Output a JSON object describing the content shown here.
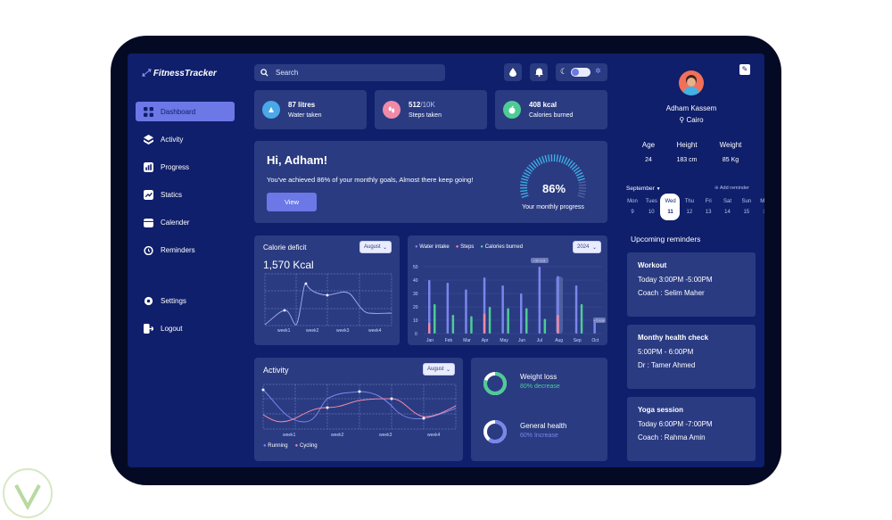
{
  "app": {
    "name": "FitnessTracker"
  },
  "sidebar": {
    "items": [
      {
        "label": "Dashboard"
      },
      {
        "label": "Activity"
      },
      {
        "label": "Progress"
      },
      {
        "label": "Statics"
      },
      {
        "label": "Calender"
      },
      {
        "label": "Reminders"
      },
      {
        "label": "Settings"
      },
      {
        "label": "Logout"
      }
    ]
  },
  "search": {
    "placeholder": "Search"
  },
  "stats": [
    {
      "value": "87 litres",
      "label": "Water taken",
      "color": "#4aa8e8"
    },
    {
      "value": "512",
      "value_suffix": "/10K",
      "label": "Steps taken",
      "color": "#f08aa8"
    },
    {
      "value": "408 kcal",
      "label": "Calories burned",
      "color": "#4ecb95"
    }
  ],
  "greeting": {
    "title": "Hi, Adham!",
    "message": "You've achieved 86% of your monthly goals, Almost there keep going!",
    "button": "View",
    "progress_value": "86%",
    "progress_label": "Your monthly progress",
    "progress_fraction": 0.86
  },
  "calorie": {
    "title": "Calorie deficit",
    "dropdown": "August",
    "value": "1,570 Kcal",
    "weeks": [
      "week1",
      "week2",
      "week3",
      "week4"
    ]
  },
  "intake_chart": {
    "legend": [
      "Water intake",
      "Steps",
      "Calories burned"
    ],
    "dropdown": "2024",
    "y_ticks": [
      "50",
      "40",
      "30",
      "20",
      "10",
      "0"
    ],
    "months": [
      "Jan",
      "Feb",
      "Mar",
      "Apr",
      "May",
      "Jun",
      "Jul",
      "Aug",
      "Sep",
      "Oct"
    ],
    "tooltip_top": "• 50 kcal",
    "tooltip_side": "• 5 kcal"
  },
  "activity": {
    "title": "Activity",
    "dropdown": "August",
    "weeks": [
      "week1",
      "week2",
      "week3",
      "week4"
    ],
    "legend": [
      "Running",
      "Cycling"
    ]
  },
  "health": [
    {
      "title": "Weight loss",
      "sub": "80% decrease",
      "color": "#4ecb95",
      "fraction": 0.8
    },
    {
      "title": "General health",
      "sub": "60% Increase",
      "color": "#7b86ec",
      "fraction": 0.6
    }
  ],
  "profile": {
    "name": "Adham Kassem",
    "location": "Cairo",
    "metrics": [
      {
        "label": "Age",
        "value": "24"
      },
      {
        "label": "Height",
        "value": "183 cm"
      },
      {
        "label": "Weight",
        "value": "85 Kg"
      }
    ]
  },
  "calendar": {
    "month": "September",
    "add_label": "Add reminder",
    "days": [
      {
        "name": "Mon",
        "num": "9"
      },
      {
        "name": "Tues",
        "num": "10"
      },
      {
        "name": "Wed",
        "num": "11"
      },
      {
        "name": "Thu",
        "num": "12"
      },
      {
        "name": "Fri",
        "num": "13"
      },
      {
        "name": "Sat",
        "num": "14"
      },
      {
        "name": "Sun",
        "num": "15"
      },
      {
        "name": "Mon",
        "num": "16"
      }
    ]
  },
  "reminders": {
    "heading": "Upcoming reminders",
    "items": [
      {
        "title": "Workout",
        "time": "Today  3:00PM -5:00PM",
        "person": "Coach : Selim Maher"
      },
      {
        "title": "Monthy health check",
        "time": "5:00PM - 6:00PM",
        "person": "Dr : Tamer Ahmed"
      },
      {
        "title": "Yoga session",
        "time": "Today  6:00PM -7:00PM",
        "person": "Coach : Rahma Amin"
      }
    ]
  }
}
